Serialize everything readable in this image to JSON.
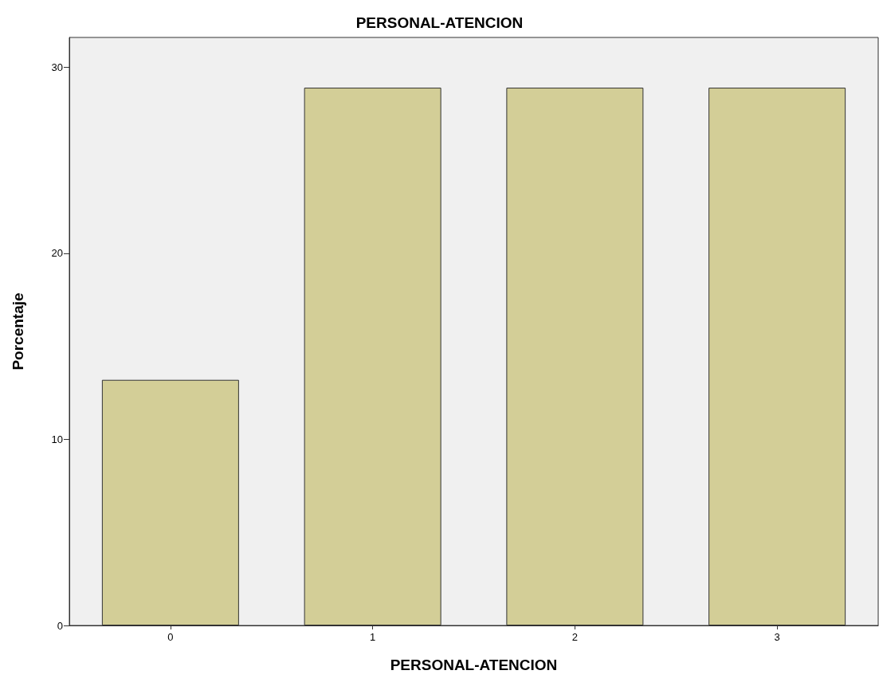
{
  "chart_data": {
    "type": "bar",
    "title": "PERSONAL-ATENCION",
    "xlabel": "PERSONAL-ATENCION",
    "ylabel": "Porcentaje",
    "categories": [
      "0",
      "1",
      "2",
      "3"
    ],
    "values": [
      13.2,
      28.9,
      28.9,
      28.9
    ],
    "color": "#d3ce97",
    "ylim": [
      0,
      31.6
    ],
    "yticks": [
      0,
      10,
      20,
      30
    ],
    "grid": false
  }
}
